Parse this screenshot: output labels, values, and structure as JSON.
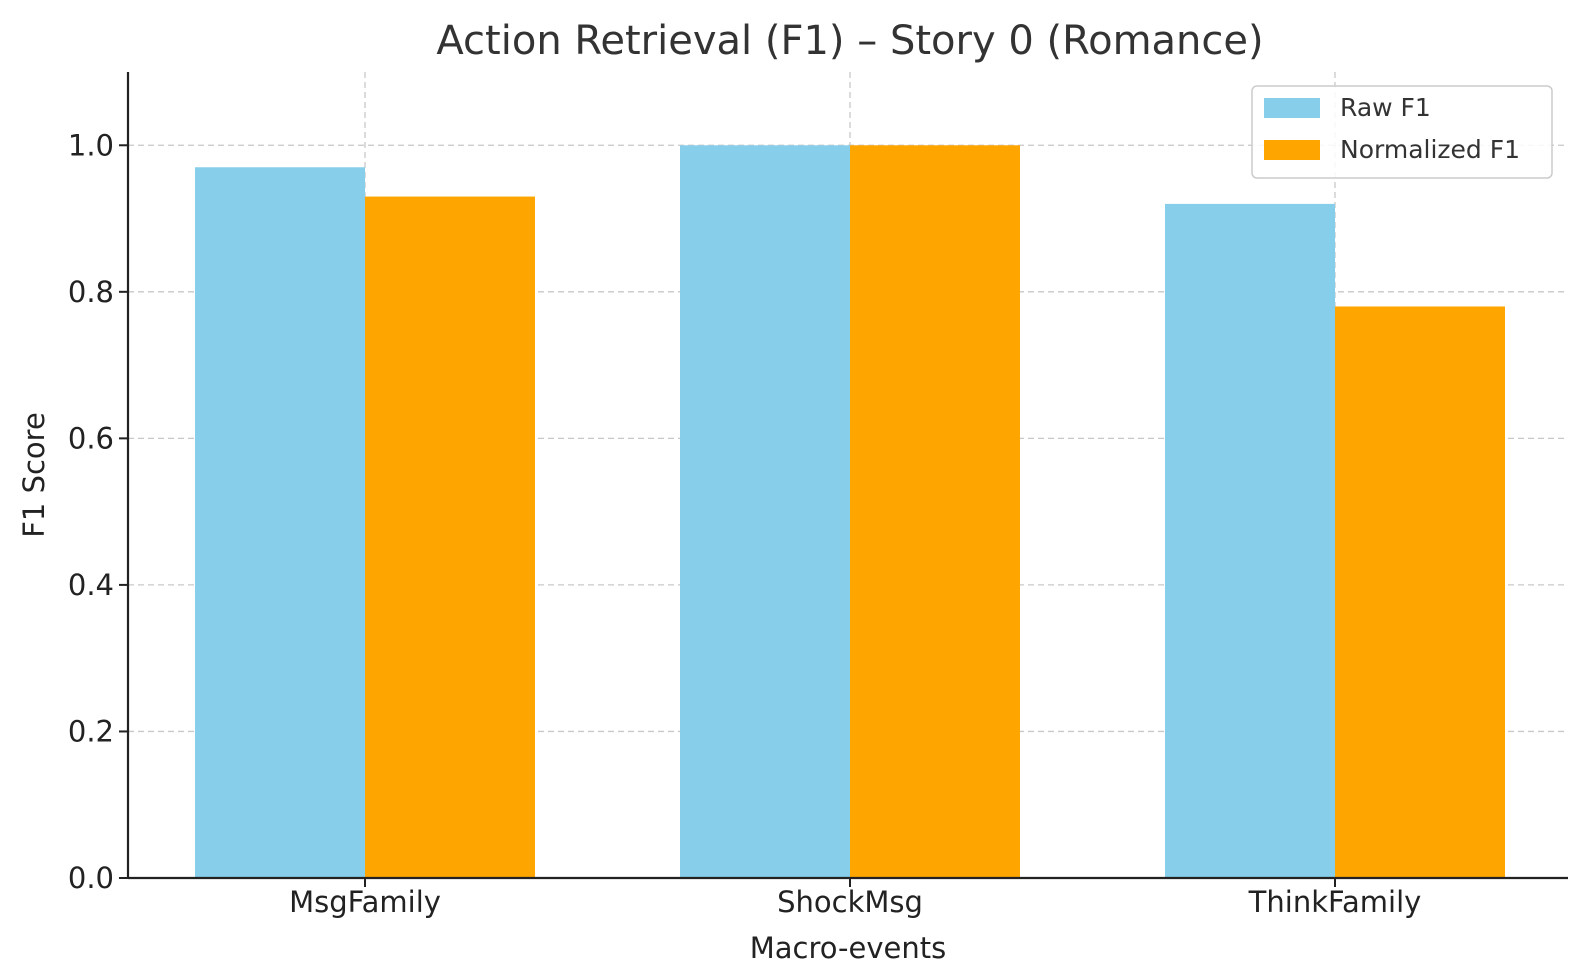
{
  "chart_data": {
    "type": "bar",
    "title": "Action Retrieval (F1) – Story 0 (Romance)",
    "xlabel": "Macro-events",
    "ylabel": "F1 Score",
    "categories": [
      "MsgFamily",
      "ShockMsg",
      "ThinkFamily"
    ],
    "series": [
      {
        "name": "Raw F1",
        "color": "#87CEEB",
        "values": [
          0.97,
          1.0,
          0.92
        ]
      },
      {
        "name": "Normalized F1",
        "color": "#FFA500",
        "values": [
          0.93,
          1.0,
          0.78
        ]
      }
    ],
    "ylim": [
      0,
      1.1
    ],
    "yticks": [
      "0.0",
      "0.2",
      "0.4",
      "0.6",
      "0.8",
      "1.0"
    ],
    "grid": true,
    "legend_position": "top-right"
  }
}
